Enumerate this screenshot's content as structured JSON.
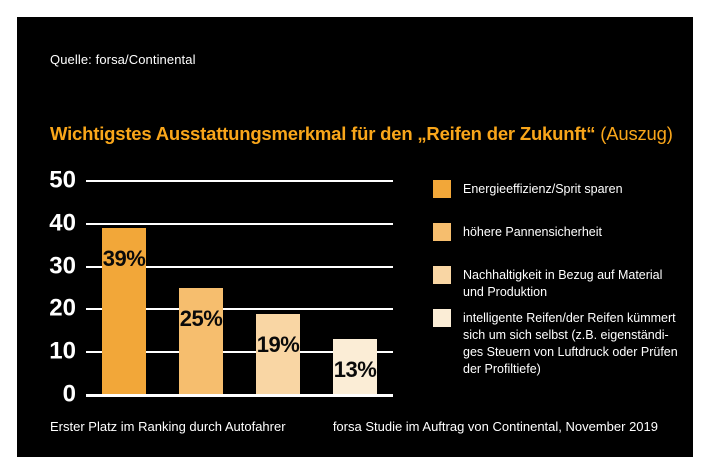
{
  "meta": {
    "source_note": "Quelle: forsa/Continental"
  },
  "title": {
    "main": "Wichtigstes Ausstattungsmerkmal für den „Reifen der Zukunft“",
    "suffix": " (Auszug)"
  },
  "footer": {
    "left": "Erster Platz im Ranking durch Autofahrer",
    "right": "forsa Studie im Auftrag von Continental, November 2019"
  },
  "colors": {
    "page_background": "#ffffff",
    "card_background": "#000000",
    "title": "#F9A61A",
    "text": "#ffffff",
    "bar_label": "#0a0a0a",
    "gridline": "#ffffff",
    "bars": [
      "#F2A739",
      "#F6BE6E",
      "#F9D6A4",
      "#FBEDD6"
    ]
  },
  "chart_data": {
    "type": "bar",
    "title": "Wichtigstes Ausstattungsmerkmal für den „Reifen der Zukunft“ (Auszug)",
    "categories": [
      "Energieeffizienz/Sprit sparen",
      "höhere Pannensicherheit",
      "Nachhaltigkeit in Bezug auf Material und Produktion",
      "intelligente Reifen/der Reifen kümmert sich um sich selbst (z.B. eigenständiges Steuern von Luftdruck oder Prüfen der Profiltiefe)"
    ],
    "values": [
      39,
      25,
      19,
      13
    ],
    "value_labels": [
      "39%",
      "25%",
      "19%",
      "13%"
    ],
    "xlabel": "",
    "ylabel": "",
    "ylim": [
      0,
      50
    ],
    "yticks": [
      0,
      10,
      20,
      30,
      40,
      50
    ],
    "grid": true,
    "legend_position": "right",
    "legend": [
      {
        "color": "#F2A739",
        "lines": [
          "Energieeffizienz/Sprit sparen"
        ]
      },
      {
        "color": "#F6BE6E",
        "lines": [
          "höhere Pannensicherheit"
        ]
      },
      {
        "color": "#F9D6A4",
        "lines": [
          "Nachhaltigkeit in Bezug auf Material",
          "und Produktion"
        ]
      },
      {
        "color": "#FBEDD6",
        "lines": [
          "intelligente Reifen/der Reifen kümmert",
          "sich um sich selbst (z.B. eigenständi-",
          "ges Steuern von Luftdruck oder Prüfen",
          "der Profiltiefe)"
        ]
      }
    ]
  }
}
